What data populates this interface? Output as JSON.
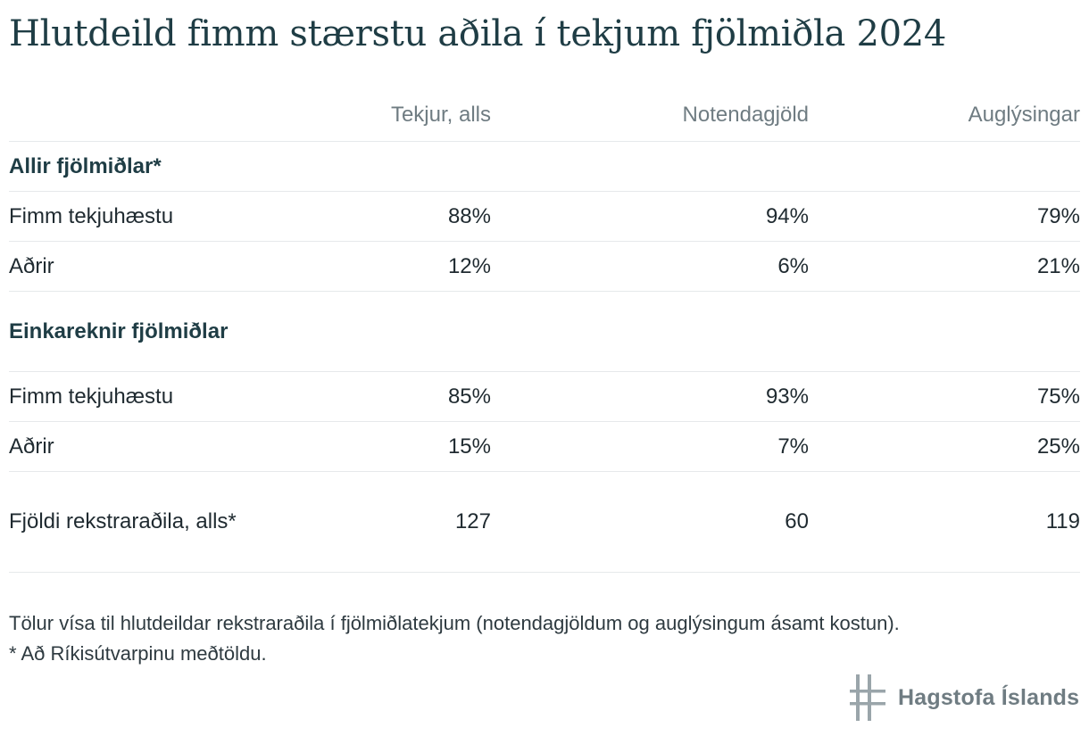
{
  "title": "Hlutdeild fimm stærstu aðila í tekjum fjölmiðla 2024",
  "table": {
    "columns": [
      "",
      "Tekjur, alls",
      "Notendagjöld",
      "Auglýsingar"
    ],
    "groups": [
      {
        "label": "Allir fjölmiðlar*",
        "rows": [
          {
            "label": "Fimm tekjuhæstu",
            "values": [
              "88%",
              "94%",
              "79%"
            ]
          },
          {
            "label": "Aðrir",
            "values": [
              "12%",
              "6%",
              "21%"
            ]
          }
        ]
      },
      {
        "label": "Einkareknir fjölmiðlar",
        "rows": [
          {
            "label": "Fimm tekjuhæstu",
            "values": [
              "85%",
              "93%",
              "75%"
            ]
          },
          {
            "label": "Aðrir",
            "values": [
              "15%",
              "7%",
              "25%"
            ]
          }
        ]
      }
    ],
    "total_row": {
      "label": "Fjöldi rekstraraðila, alls*",
      "values": [
        "127",
        "60",
        "119"
      ]
    }
  },
  "footnotes": [
    "Tölur vísa til hlutdeildar rekstraraðila í fjölmiðlatekjum (notendagjöldum og auglýsingum ásamt kostun).",
    "* Að Ríkisútvarpinu meðtöldu."
  ],
  "logo": {
    "text": "Hagstofa Íslands",
    "icon": "hagstofa-logo-icon",
    "color": "#6f7c82"
  }
}
